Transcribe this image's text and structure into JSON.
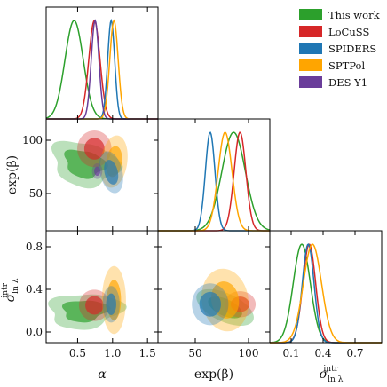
{
  "legend": {
    "placement": "top-right",
    "entries": [
      {
        "name": "This work",
        "color": "#2ca02c"
      },
      {
        "name": "LoCuSS",
        "color": "#d62728"
      },
      {
        "name": "SPIDERS",
        "color": "#1f77b4"
      },
      {
        "name": "SPTPol",
        "color": "#ffa500"
      },
      {
        "name": "DES Y1",
        "color": "#6a3d9a"
      }
    ]
  },
  "chart_data": {
    "type": "corner",
    "parameters": [
      {
        "key": "alpha",
        "label": "α",
        "range": [
          0.05,
          1.65
        ],
        "ticks": [
          0.5,
          1.0,
          1.5
        ],
        "tick_labels": [
          "0.5",
          "1.0",
          "1.5"
        ]
      },
      {
        "key": "expbeta",
        "label": "exp(β)",
        "range": [
          15,
          120
        ],
        "ticks": [
          50,
          100
        ],
        "tick_labels": [
          "50",
          "100"
        ]
      },
      {
        "key": "sigma",
        "label": "σ",
        "label_sub": "ln λ",
        "label_sup": "intr",
        "range": [
          -0.1,
          0.95
        ],
        "ticks": [
          0.1,
          0.4,
          0.7
        ],
        "tick_labels": [
          "0.1",
          "0.4",
          "0.7"
        ],
        "y_ticks": [
          0.0,
          0.4,
          0.8
        ],
        "y_tick_labels": [
          "0.0",
          "0.4",
          "0.8"
        ]
      }
    ],
    "y_axis_labels": [
      "exp(β)",
      "σ"
    ],
    "grid": false,
    "series": [
      {
        "name": "This work",
        "color": "#2ca02c",
        "marginals": {
          "alpha": {
            "mean": 0.45,
            "sd": 0.13
          },
          "expbeta": {
            "mean": 86,
            "sd": 11
          },
          "sigma": {
            "mean": 0.2,
            "sd": 0.08
          }
        },
        "contours": {
          "expbeta_vs_alpha": {
            "c": [
              0.6,
              78
            ],
            "s": [
              0.2,
              9
            ],
            "rho": -0.2,
            "blob": true
          },
          "sigma_vs_alpha": {
            "c": [
              0.6,
              0.2
            ],
            "s": [
              0.22,
              0.07
            ],
            "rho": 0.1,
            "blob": true
          },
          "sigma_vs_expbeta": {
            "c": [
              78,
              0.23
            ],
            "s": [
              11,
              0.07
            ],
            "rho": -0.55,
            "blob": false
          }
        }
      },
      {
        "name": "LoCuSS",
        "color": "#d62728",
        "marginals": {
          "alpha": {
            "mean": 0.74,
            "sd": 0.08
          },
          "expbeta": {
            "mean": 92,
            "sd": 5.5
          },
          "sigma": {
            "mean": 0.27,
            "sd": 0.06
          }
        },
        "contours": {
          "expbeta_vs_alpha": {
            "c": [
              0.74,
              92
            ],
            "s": [
              0.1,
              7
            ],
            "rho": 0.0
          },
          "sigma_vs_alpha": {
            "c": [
              0.74,
              0.25
            ],
            "s": [
              0.09,
              0.06
            ],
            "rho": 0.0
          },
          "sigma_vs_expbeta": {
            "c": [
              92,
              0.26
            ],
            "s": [
              6,
              0.05
            ],
            "rho": 0.0
          }
        }
      },
      {
        "name": "SPIDERS",
        "color": "#1f77b4",
        "marginals": {
          "alpha": {
            "mean": 0.98,
            "sd": 0.05
          },
          "expbeta": {
            "mean": 64,
            "sd": 4.5
          },
          "sigma": {
            "mean": 0.26,
            "sd": 0.055
          }
        },
        "contours": {
          "expbeta_vs_alpha": {
            "c": [
              0.98,
              70
            ],
            "s": [
              0.07,
              8
            ],
            "rho": -0.3
          },
          "sigma_vs_alpha": {
            "c": [
              0.98,
              0.26
            ],
            "s": [
              0.05,
              0.07
            ],
            "rho": 0.0
          },
          "sigma_vs_expbeta": {
            "c": [
              64,
              0.26
            ],
            "s": [
              7,
              0.08
            ],
            "rho": 0.0
          }
        }
      },
      {
        "name": "SPTPol",
        "color": "#ffa500",
        "marginals": {
          "alpha": {
            "mean": 1.02,
            "sd": 0.06
          },
          "expbeta": {
            "mean": 78,
            "sd": 6.5
          },
          "sigma": {
            "mean": 0.3,
            "sd": 0.085
          }
        },
        "contours": {
          "expbeta_vs_alpha": {
            "c": [
              1.02,
              80
            ],
            "s": [
              0.08,
              10
            ],
            "rho": 0.2
          },
          "sigma_vs_alpha": {
            "c": [
              1.02,
              0.3
            ],
            "s": [
              0.07,
              0.13
            ],
            "rho": 0.0
          },
          "sigma_vs_expbeta": {
            "c": [
              78,
              0.3
            ],
            "s": [
              9,
              0.12
            ],
            "rho": -0.1
          }
        }
      },
      {
        "name": "DES Y1",
        "color": "#6a3d9a",
        "marginals": {
          "alpha": {
            "mean": 0.75,
            "sd": 0.055
          },
          "expbeta": null,
          "sigma": null
        },
        "contours": {
          "expbeta_vs_alpha": {
            "c": [
              0.78,
              71
            ],
            "s": [
              0.03,
              3
            ],
            "rho": 0.0
          }
        }
      }
    ]
  }
}
